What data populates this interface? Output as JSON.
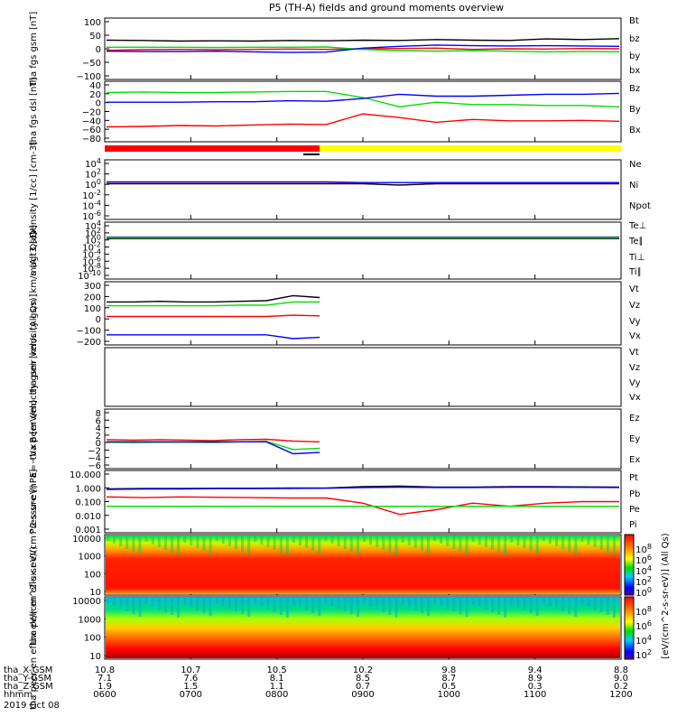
{
  "title": "P5 (TH-A) fields and ground moments overview",
  "footer": {
    "date": "2019 Oct 08",
    "row_labels": [
      "tha_X-GSM",
      "tha_Y-GSM",
      "tha_Z-GSM",
      "hhmm"
    ],
    "x_ticks": [
      {
        "x": "10.8",
        "y": "7.1",
        "z": "1.9",
        "t": "0600"
      },
      {
        "x": "10.7",
        "y": "7.6",
        "z": "1.5",
        "t": "0700"
      },
      {
        "x": "10.5",
        "y": "8.1",
        "z": "1.1",
        "t": "0800"
      },
      {
        "x": "10.2",
        "y": "8.5",
        "z": "0.7",
        "t": "0900"
      },
      {
        "x": "9.8",
        "y": "8.7",
        "z": "0.5",
        "t": "1000"
      },
      {
        "x": "9.4",
        "y": "8.9",
        "z": "0.3",
        "t": "1100"
      },
      {
        "x": "8.8",
        "y": "9.0",
        "z": "0.2",
        "t": "1200"
      }
    ]
  },
  "colorbar": {
    "label": "[eV/(cm^2-s-sr-eV)] (All Qs)",
    "ticks1": [
      "10^8",
      "10^6",
      "10^4",
      "10^2",
      "10^0"
    ],
    "ticks2": [
      "10^8",
      "10^6",
      "10^4",
      "10^2"
    ]
  },
  "colors": {
    "black": "#000000",
    "red": "#ff0000",
    "green": "#00dd00",
    "blue": "#0000ff",
    "yellow": "#ffff00"
  },
  "chart_data": [
    {
      "type": "line",
      "panel": "fgs_gsm",
      "ylabel": "tha fgs gsm [nT]",
      "ylim": [
        -100,
        100
      ],
      "yticks": [
        "100",
        "50",
        "0",
        "−50",
        "−100"
      ],
      "series": [
        {
          "name": "Bt",
          "color": "black",
          "values": [
            28,
            27,
            25,
            26,
            25,
            27,
            26,
            28,
            27,
            30,
            28,
            27,
            32,
            30,
            33
          ]
        },
        {
          "name": "bz",
          "color": "red",
          "values": [
            -5,
            -3,
            -2,
            -3,
            -2,
            -1,
            -2,
            0,
            1,
            2,
            -2,
            0,
            -1,
            1,
            0
          ]
        },
        {
          "name": "by",
          "color": "green",
          "values": [
            5,
            5,
            5,
            4,
            5,
            5,
            6,
            -2,
            -6,
            -8,
            -6,
            -8,
            -10,
            -9,
            -10
          ]
        },
        {
          "name": "bx",
          "color": "blue",
          "values": [
            -8,
            -9,
            -9,
            -8,
            -10,
            -12,
            -11,
            2,
            8,
            12,
            10,
            9,
            10,
            9,
            8
          ]
        }
      ]
    },
    {
      "type": "line",
      "panel": "fgs_dsl",
      "ylabel": "tha fgs dsl [nT]",
      "ylim": [
        -90,
        40
      ],
      "yticks": [
        "40",
        "20",
        "0",
        "−20",
        "−40",
        "−60",
        "−80"
      ],
      "series": [
        {
          "name": "Bz",
          "color": "red",
          "values": [
            -58,
            -57,
            -55,
            -56,
            -54,
            -52,
            -53,
            -30,
            -38,
            -48,
            -42,
            -45,
            -45,
            -44,
            -46
          ]
        },
        {
          "name": "By",
          "color": "green",
          "values": [
            16,
            17,
            16,
            16,
            17,
            18,
            18,
            5,
            -15,
            -5,
            -10,
            -10,
            -12,
            -12,
            -15
          ]
        },
        {
          "name": "Bx",
          "color": "blue",
          "values": [
            -5,
            -5,
            -5,
            -4,
            -4,
            -2,
            -3,
            3,
            12,
            8,
            8,
            10,
            12,
            12,
            14
          ]
        }
      ]
    },
    {
      "type": "line",
      "panel": "density",
      "ylabel": "Density [1/cc] [cm-3]",
      "yscale": "log",
      "ylim": [
        -6,
        4
      ],
      "yticks": [
        "10^4",
        "10^2",
        "10^0",
        "10^-2",
        "10^-4",
        "10^-6"
      ],
      "series": [
        {
          "name": "Ne",
          "color": "red",
          "values": [
            1,
            1,
            1,
            1,
            1,
            1,
            1,
            1,
            0.6,
            1,
            1,
            1,
            1,
            1,
            1
          ]
        },
        {
          "name": "Ni",
          "color": "black",
          "values": [
            1,
            1,
            1,
            1,
            1,
            1,
            1,
            1,
            0.6,
            1,
            1,
            1,
            1,
            1,
            1
          ]
        },
        {
          "name": "Npot",
          "color": "blue",
          "values": [
            2,
            2,
            2,
            2,
            2,
            2,
            2,
            1.5,
            1.5,
            1.5,
            1.5,
            1.5,
            1.5,
            1.5,
            1.5
          ]
        }
      ]
    },
    {
      "type": "line",
      "panel": "magt3",
      "ylabel": "magt3 [eV]",
      "yscale": "log",
      "ylim": [
        -10,
        4
      ],
      "yticks": [
        "10^4",
        "10^2",
        "10^0",
        "10^-2",
        "10^-4",
        "10^-6",
        "10^-8",
        "10^-10"
      ],
      "series": [
        {
          "name": "Te⊥",
          "color": "red",
          "values": [
            1,
            1,
            1,
            1,
            1,
            1,
            1,
            1,
            1,
            1,
            1,
            1,
            1,
            1,
            1
          ]
        },
        {
          "name": "Te∥",
          "color": "black",
          "values": [
            1,
            1,
            1,
            1,
            1,
            1,
            1,
            1,
            1,
            1,
            1,
            1,
            1,
            1,
            1
          ]
        },
        {
          "name": "Ti⊥",
          "color": "blue",
          "values": [
            2,
            2,
            2,
            2,
            2,
            2,
            2,
            2,
            2,
            2,
            2,
            2,
            2,
            2,
            2
          ]
        },
        {
          "name": "Ti∥",
          "color": "green",
          "values": [
            1.5,
            1.5,
            1.5,
            1.5,
            1.5,
            1.5,
            1.5,
            1.5,
            1.5,
            1.5,
            1.5,
            1.5,
            1.5,
            1.5,
            1.5
          ]
        }
      ]
    },
    {
      "type": "line",
      "panel": "peir_velocity",
      "ylabel": "tha peir velocity gsm [km/s (All Qs)]",
      "ylim": [
        -200,
        300
      ],
      "yticks": [
        "300",
        "200",
        "100",
        "0",
        "−100",
        "−200"
      ],
      "series": [
        {
          "name": "Vt",
          "color": "black",
          "values": [
            140,
            140,
            145,
            140,
            140,
            145,
            150,
            190,
            175
          ]
        },
        {
          "name": "Vz",
          "color": "red",
          "values": [
            25,
            25,
            25,
            25,
            25,
            25,
            25,
            35,
            30
          ]
        },
        {
          "name": "Vy",
          "color": "green",
          "values": [
            110,
            110,
            110,
            110,
            110,
            115,
            115,
            140,
            140
          ]
        },
        {
          "name": "Vx",
          "color": "blue",
          "values": [
            -120,
            -120,
            -120,
            -120,
            -120,
            -120,
            -120,
            -150,
            -140
          ]
        }
      ]
    },
    {
      "type": "line",
      "panel": "peer_velocity",
      "ylabel": "tha peer velocity gsm [km/s (All Qs)]",
      "ylim": [
        -1,
        1
      ],
      "yticks": [],
      "series": [
        {
          "name": "Vt",
          "color": "black",
          "values": []
        },
        {
          "name": "Vz",
          "color": "red",
          "values": []
        },
        {
          "name": "Vy",
          "color": "green",
          "values": []
        },
        {
          "name": "Vx",
          "color": "blue",
          "values": []
        }
      ]
    },
    {
      "type": "line",
      "panel": "efield",
      "ylabel": "E=−V×B [mV/m]",
      "ylim": [
        -6,
        8
      ],
      "yticks": [
        "8",
        "6",
        "4",
        "2",
        "0",
        "−2",
        "−4",
        "−6"
      ],
      "series": [
        {
          "name": "Ez",
          "color": "red",
          "values": [
            0.8,
            0.7,
            0.8,
            0.7,
            0.6,
            0.8,
            0.9,
            0.5,
            0.3
          ]
        },
        {
          "name": "Ey",
          "color": "green",
          "values": [
            0.2,
            0.1,
            0.2,
            0.2,
            0.1,
            0.3,
            0.4,
            -1.5,
            -1.2
          ]
        },
        {
          "name": "Ex",
          "color": "blue",
          "values": [
            0.3,
            0.3,
            0.3,
            0.3,
            0.3,
            0.3,
            0.3,
            -2.5,
            -2.2
          ]
        }
      ]
    },
    {
      "type": "line",
      "panel": "pressure",
      "ylabel": "Pressure [nPa]",
      "yscale": "log",
      "ylim": [
        -3,
        1
      ],
      "yticks": [
        "10.000",
        "1.000",
        "0.100",
        "0.010",
        "0.001"
      ],
      "series": [
        {
          "name": "Pt",
          "color": "black",
          "values": [
            0.65,
            0.7,
            0.7,
            0.72,
            0.72,
            0.74,
            0.75,
            0.9,
            1.0,
            0.85,
            0.85,
            0.9,
            0.9,
            0.88,
            0.85
          ]
        },
        {
          "name": "Pb",
          "color": "red",
          "values": [
            0.2,
            0.18,
            0.2,
            0.19,
            0.18,
            0.17,
            0.17,
            0.08,
            0.015,
            0.03,
            0.08,
            0.05,
            0.08,
            0.1,
            0.1
          ]
        },
        {
          "name": "Pe",
          "color": "green",
          "values": [
            0.05,
            0.05,
            0.05,
            0.05,
            0.05,
            0.05,
            0.05,
            0.05,
            0.05,
            0.05,
            0.05,
            0.05,
            0.05,
            0.05,
            0.05
          ]
        },
        {
          "name": "Pi",
          "color": "blue",
          "values": [
            0.6,
            0.65,
            0.65,
            0.68,
            0.68,
            0.7,
            0.72,
            0.8,
            0.85,
            0.8,
            0.8,
            0.85,
            0.85,
            0.82,
            0.8
          ]
        }
      ]
    },
    {
      "type": "heatmap",
      "panel": "peir_eflux",
      "ylabel": "tha peir en eflux eV/(cm^2-s-sr-eV)",
      "yscale": "log",
      "ylim": [
        10,
        30000
      ],
      "yticks": [
        "10000",
        "1000",
        "100",
        "10"
      ]
    },
    {
      "type": "heatmap",
      "panel": "peer_eflux",
      "ylabel": "tha peer en eflux eV/(cm^2-s-sr-eV)",
      "yscale": "log",
      "ylim": [
        10,
        30000
      ],
      "yticks": [
        "10000",
        "1000",
        "100",
        "10"
      ]
    }
  ]
}
